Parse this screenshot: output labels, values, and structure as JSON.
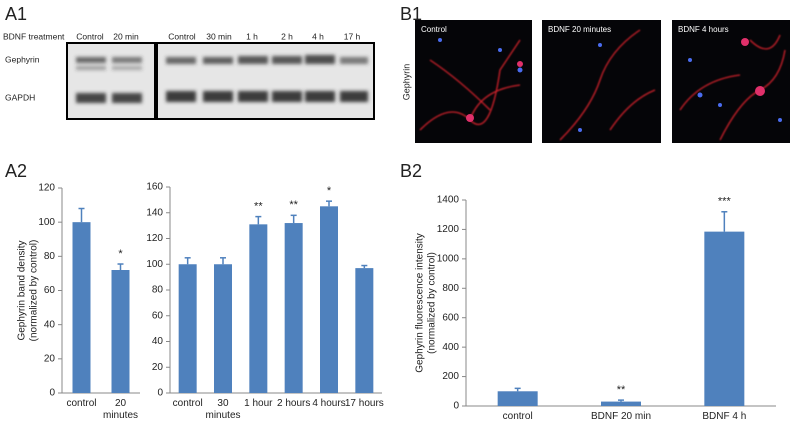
{
  "panel_labels": [
    "A1",
    "B1",
    "A2",
    "B2"
  ],
  "blot": {
    "row_label": "BDNF treatment",
    "lanes_left": [
      "Control",
      "20 min"
    ],
    "lanes_right": [
      "Control",
      "30 min",
      "1 h",
      "2 h",
      "4 h",
      "17 h"
    ],
    "bands": [
      "Gephyrin",
      "GAPDH"
    ]
  },
  "micrographs": {
    "y_label": "Gephyrin",
    "captions": [
      "Control",
      "BDNF 20 minutes",
      "BDNF 4 hours"
    ]
  },
  "chart_data": [
    {
      "type": "bar",
      "ylabel": [
        "Gephyrin band density",
        "(normalized by control)"
      ],
      "categories": [
        "control",
        "20 minutes"
      ],
      "values": [
        100,
        72
      ],
      "errors": [
        8,
        3.5
      ],
      "annotations": [
        null,
        "*"
      ],
      "color": "#4f81bd",
      "ylim": [
        0,
        120
      ],
      "yticks": [
        0,
        20,
        40,
        60,
        80,
        100,
        120
      ]
    },
    {
      "type": "bar",
      "categories": [
        "control",
        "30 minutes",
        "1 hour",
        "2 hours",
        "4 hours",
        "17 hours"
      ],
      "values": [
        100,
        100,
        131,
        132,
        145,
        97
      ],
      "errors": [
        5,
        5,
        6,
        6,
        4,
        2
      ],
      "annotations": [
        null,
        null,
        "**",
        "**",
        "*",
        null
      ],
      "color": "#4f81bd",
      "ylim": [
        0,
        160
      ],
      "yticks": [
        0,
        20,
        40,
        60,
        80,
        100,
        120,
        140,
        160
      ]
    },
    {
      "type": "bar",
      "ylabel": [
        "Gephyrin fluorescence intensity",
        "(normalized by control)"
      ],
      "categories": [
        "control",
        "BDNF 20 min",
        "BDNF 4 h"
      ],
      "values": [
        100,
        30,
        1185
      ],
      "errors": [
        20,
        10,
        135
      ],
      "annotations": [
        null,
        "**",
        "***"
      ],
      "color": "#4f81bd",
      "ylim": [
        0,
        1400
      ],
      "yticks": [
        0,
        200,
        400,
        600,
        800,
        1000,
        1200,
        1400
      ]
    }
  ]
}
